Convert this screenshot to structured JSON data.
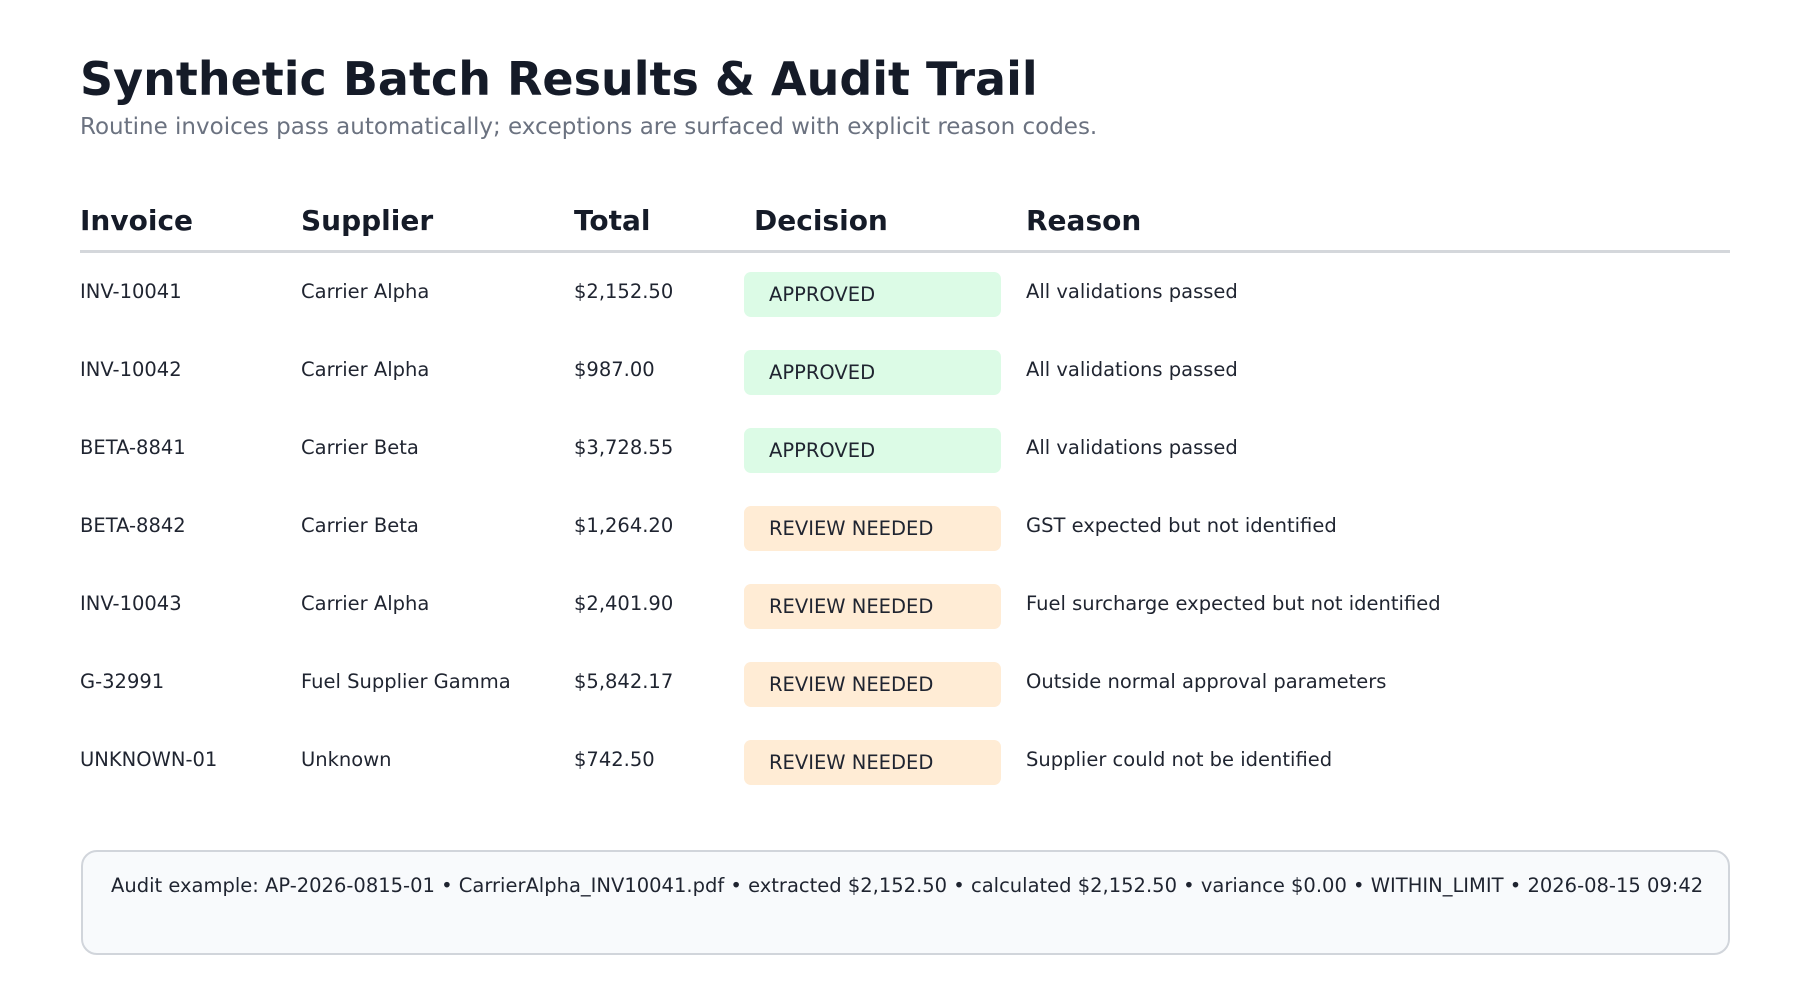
{
  "page": {
    "title": "Synthetic Batch Results & Audit Trail",
    "subtitle": "Routine invoices pass automatically; exceptions are surfaced with explicit reason codes."
  },
  "table": {
    "headers": {
      "invoice": "Invoice",
      "supplier": "Supplier",
      "total": "Total",
      "decision": "Decision",
      "reason": "Reason"
    },
    "rows": [
      {
        "invoice": "INV-10041",
        "supplier": "Carrier Alpha",
        "total": "$2,152.50",
        "decision": "APPROVED",
        "status": "approved",
        "reason": "All validations passed"
      },
      {
        "invoice": "INV-10042",
        "supplier": "Carrier Alpha",
        "total": "$987.00",
        "decision": "APPROVED",
        "status": "approved",
        "reason": "All validations passed"
      },
      {
        "invoice": "BETA-8841",
        "supplier": "Carrier Beta",
        "total": "$3,728.55",
        "decision": "APPROVED",
        "status": "approved",
        "reason": "All validations passed"
      },
      {
        "invoice": "BETA-8842",
        "supplier": "Carrier Beta",
        "total": "$1,264.20",
        "decision": "REVIEW NEEDED",
        "status": "review",
        "reason": "GST expected but not identified"
      },
      {
        "invoice": "INV-10043",
        "supplier": "Carrier Alpha",
        "total": "$2,401.90",
        "decision": "REVIEW NEEDED",
        "status": "review",
        "reason": "Fuel surcharge expected but not identified"
      },
      {
        "invoice": "G-32991",
        "supplier": "Fuel Supplier Gamma",
        "total": "$5,842.17",
        "decision": "REVIEW NEEDED",
        "status": "review",
        "reason": "Outside normal approval parameters"
      },
      {
        "invoice": "UNKNOWN-01",
        "supplier": "Unknown",
        "total": "$742.50",
        "decision": "REVIEW NEEDED",
        "status": "review",
        "reason": "Supplier could not be identified"
      }
    ]
  },
  "audit": {
    "text": "Audit example: AP-2026-0815-01 • CarrierAlpha_INV10041.pdf • extracted $2,152.50 • calculated $2,152.50 • variance $0.00 • WITHIN_LIMIT • 2026-08-15 09:42"
  },
  "colors": {
    "approved_badge": "#dcfbe6",
    "review_badge": "#ffecd5",
    "header_rule": "#d4d7db",
    "audit_background": "#f8fafc"
  }
}
